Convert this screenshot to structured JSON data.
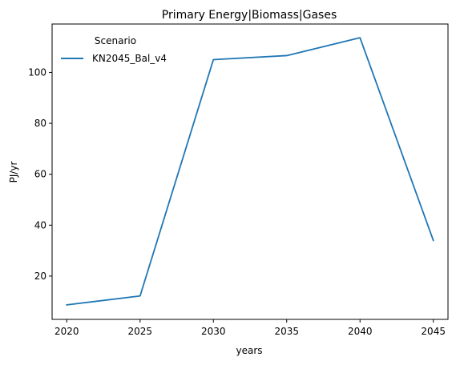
{
  "chart_data": {
    "type": "line",
    "title": "Primary Energy|Biomass|Gases",
    "xlabel": "years",
    "ylabel": "PJ/yr",
    "x": [
      2020,
      2025,
      2030,
      2035,
      2040,
      2045
    ],
    "x_ticks": [
      2020,
      2025,
      2030,
      2035,
      2040,
      2045
    ],
    "y_ticks": [
      20,
      40,
      60,
      80,
      100
    ],
    "xlim": [
      2019,
      2046
    ],
    "ylim": [
      3,
      119
    ],
    "grid": false,
    "legend": {
      "title": "Scenario",
      "placement": "top-left"
    },
    "series": [
      {
        "name": "KN2045_Bal_v4",
        "color": "#1f77b4",
        "values": [
          8.7,
          12.2,
          105.0,
          106.6,
          113.6,
          34.0
        ]
      }
    ]
  }
}
